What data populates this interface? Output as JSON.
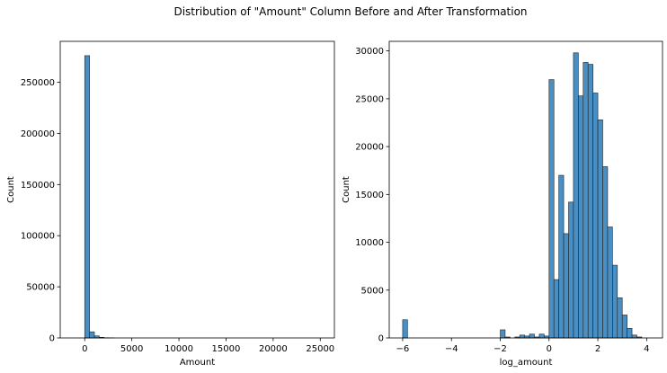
{
  "suptitle": "Distribution of \"Amount\" Column Before and After Transformation",
  "chart_data": [
    {
      "type": "bar",
      "xlabel": "Amount",
      "ylabel": "Count",
      "xlim": [
        -2600,
        26500
      ],
      "ylim": [
        0,
        290000
      ],
      "xticks": [
        0,
        5000,
        10000,
        15000,
        20000,
        25000
      ],
      "yticks": [
        0,
        50000,
        100000,
        150000,
        200000,
        250000
      ],
      "bin_width": 514,
      "bins": [
        {
          "x": 0,
          "count": 276000
        },
        {
          "x": 514,
          "count": 6000
        },
        {
          "x": 1028,
          "count": 2000
        },
        {
          "x": 1542,
          "count": 600
        },
        {
          "x": 2056,
          "count": 200
        },
        {
          "x": 2570,
          "count": 100
        }
      ],
      "bar_color": "#4a8fc3"
    },
    {
      "type": "bar",
      "xlabel": "log_amount",
      "ylabel": "Count",
      "xlim": [
        -6.55,
        4.65
      ],
      "ylim": [
        0,
        31000
      ],
      "xticks": [
        -6,
        -4,
        -2,
        0,
        2,
        4
      ],
      "yticks": [
        0,
        5000,
        10000,
        15000,
        20000,
        25000,
        30000
      ],
      "bin_width": 0.2,
      "bins": [
        {
          "x": -6.0,
          "count": 1900
        },
        {
          "x": -2.0,
          "count": 850
        },
        {
          "x": -1.8,
          "count": 100
        },
        {
          "x": -1.4,
          "count": 100
        },
        {
          "x": -1.2,
          "count": 300
        },
        {
          "x": -1.0,
          "count": 200
        },
        {
          "x": -0.8,
          "count": 400
        },
        {
          "x": -0.6,
          "count": 100
        },
        {
          "x": -0.4,
          "count": 400
        },
        {
          "x": -0.2,
          "count": 200
        },
        {
          "x": 0.0,
          "count": 27000
        },
        {
          "x": 0.2,
          "count": 6100
        },
        {
          "x": 0.4,
          "count": 17000
        },
        {
          "x": 0.6,
          "count": 10900
        },
        {
          "x": 0.8,
          "count": 14200
        },
        {
          "x": 1.0,
          "count": 29800
        },
        {
          "x": 1.2,
          "count": 25300
        },
        {
          "x": 1.4,
          "count": 28800
        },
        {
          "x": 1.6,
          "count": 28600
        },
        {
          "x": 1.8,
          "count": 25600
        },
        {
          "x": 2.0,
          "count": 22800
        },
        {
          "x": 2.2,
          "count": 17900
        },
        {
          "x": 2.4,
          "count": 11600
        },
        {
          "x": 2.6,
          "count": 7600
        },
        {
          "x": 2.8,
          "count": 4200
        },
        {
          "x": 3.0,
          "count": 2400
        },
        {
          "x": 3.2,
          "count": 1000
        },
        {
          "x": 3.4,
          "count": 300
        },
        {
          "x": 3.6,
          "count": 100
        }
      ],
      "bar_color": "#4a8fc3"
    }
  ]
}
